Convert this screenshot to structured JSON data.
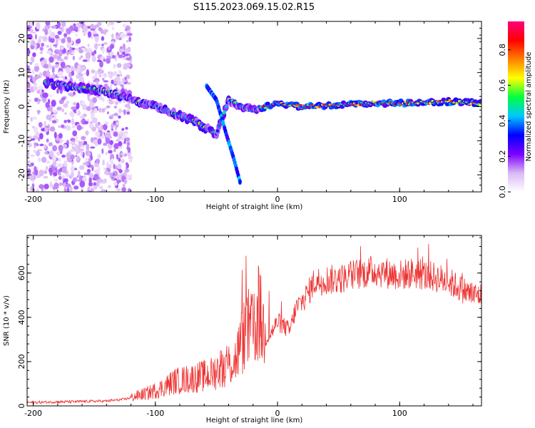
{
  "title": "S115.2023.069.15.02.R15",
  "chart_data": [
    {
      "type": "heatmap",
      "xlabel": "Height of straight line (km)",
      "ylabel": "Frequency (Hz)",
      "xlim": [
        -205,
        167
      ],
      "ylim": [
        -25,
        25
      ],
      "xticks": [
        -200,
        -100,
        0,
        100
      ],
      "yticks": [
        -20,
        -10,
        0,
        10,
        20
      ],
      "colorbar": {
        "label": "Normalized spectral amplitude",
        "range": [
          0,
          0.96
        ],
        "ticks": [
          0.0,
          0.2,
          0.4,
          0.6,
          0.8
        ],
        "colors": [
          "#ffffff",
          "#d9b8f5",
          "#7a00ff",
          "#0000ff",
          "#00c8ff",
          "#00ff40",
          "#ffff00",
          "#ff8000",
          "#ff0000",
          "#ff007f"
        ]
      },
      "ridge": {
        "x": [
          -190,
          -170,
          -150,
          -135,
          -120,
          -100,
          -85,
          -70,
          -60,
          -50,
          -40,
          -30,
          -20,
          -10,
          0,
          20,
          50,
          80,
          110,
          140,
          167
        ],
        "y": [
          7,
          6,
          5,
          4,
          2,
          0,
          -2,
          -4,
          -6,
          -8,
          2,
          0,
          -1,
          0,
          1,
          0,
          0.5,
          1,
          1,
          1.5,
          1
        ]
      },
      "branch": {
        "x": [
          -58,
          -50,
          -42,
          -36,
          -30
        ],
        "y": [
          6,
          2,
          -8,
          -15,
          -23
        ]
      }
    },
    {
      "type": "line",
      "xlabel": "Height of straight line (km)",
      "ylabel": "SNR (10 * v/v)",
      "xlim": [
        -205,
        167
      ],
      "ylim": [
        0,
        770
      ],
      "xticks": [
        -200,
        -100,
        0,
        100
      ],
      "yticks": [
        0,
        200,
        400,
        600
      ],
      "color": "#ee3333",
      "x": [
        -205,
        -180,
        -160,
        -140,
        -125,
        -115,
        -105,
        -95,
        -85,
        -75,
        -65,
        -55,
        -45,
        -35,
        -30,
        -25,
        -20,
        -15,
        -10,
        -5,
        0,
        5,
        10,
        15,
        20,
        25,
        30,
        40,
        50,
        60,
        70,
        80,
        90,
        100,
        110,
        120,
        130,
        140,
        150,
        160,
        167
      ],
      "y": [
        15,
        18,
        20,
        22,
        30,
        45,
        60,
        80,
        110,
        120,
        130,
        140,
        180,
        200,
        280,
        350,
        330,
        420,
        300,
        330,
        380,
        360,
        340,
        440,
        470,
        510,
        560,
        570,
        570,
        590,
        600,
        610,
        600,
        590,
        600,
        590,
        580,
        560,
        530,
        500,
        500
      ]
    }
  ]
}
